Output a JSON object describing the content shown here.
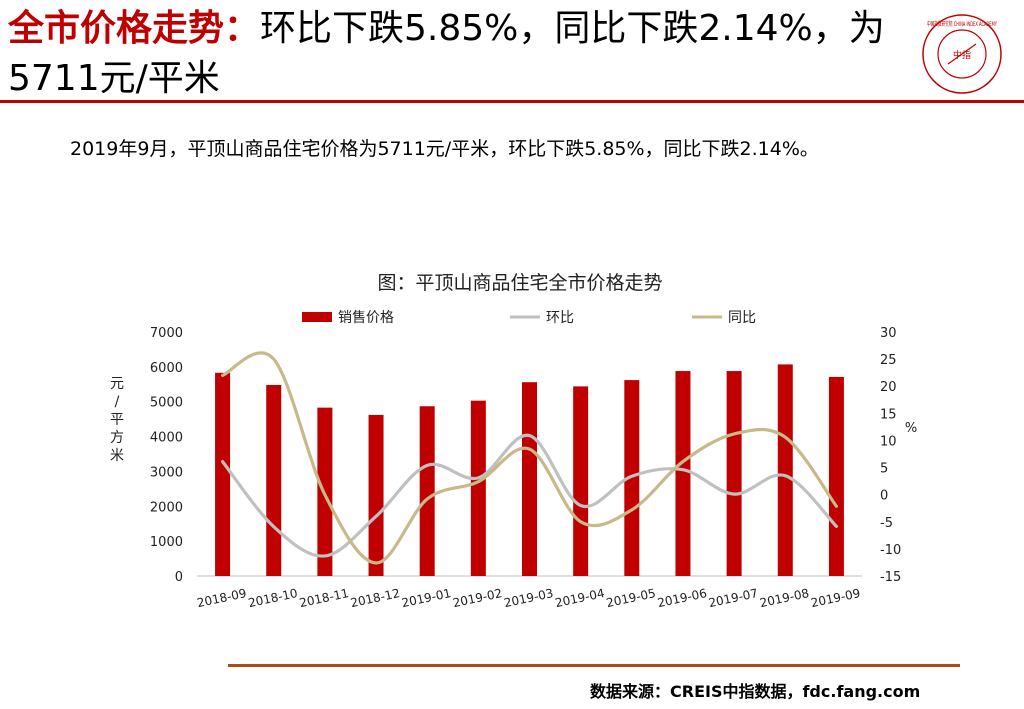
{
  "header": {
    "title_highlight": "全市价格走势：",
    "title_rest": "环比下跌5.85%，同比下跌2.14%，为5711元/平米"
  },
  "logo": {
    "text": "中国指数研究院 CHINA INDEX ACADEMY",
    "center_text": "中指",
    "color": "#c00000"
  },
  "summary": "2019年9月，平顶山商品住宅价格为5711元/平米，环比下跌5.85%，同比下跌2.14%。",
  "footer": {
    "source": "数据来源：CREIS中指数据，fdc.fang.com"
  },
  "colors": {
    "accent": "#c00000",
    "mom": "#c0c0c0",
    "yoy": "#c8b98a"
  },
  "chart_data": {
    "type": "bar",
    "title": "图：平顶山商品住宅全市价格走势",
    "ylabel": "元/平方米",
    "y2label": "%",
    "categories": [
      "2018-09",
      "2018-10",
      "2018-11",
      "2018-12",
      "2019-01",
      "2019-02",
      "2019-03",
      "2019-04",
      "2019-05",
      "2019-06",
      "2019-07",
      "2019-08",
      "2019-09"
    ],
    "series": [
      {
        "name": "销售价格",
        "type": "bar",
        "axis": "left",
        "values": [
          5830,
          5480,
          4830,
          4620,
          4870,
          5030,
          5560,
          5440,
          5620,
          5880,
          5880,
          6070,
          5711
        ]
      },
      {
        "name": "环比",
        "type": "line",
        "axis": "right",
        "values": [
          6.1,
          -5.9,
          -11.3,
          -4.0,
          5.4,
          3.1,
          10.9,
          -2.0,
          3.4,
          4.6,
          0.1,
          3.5,
          -5.85
        ]
      },
      {
        "name": "同比",
        "type": "line",
        "axis": "right",
        "values": [
          22.0,
          25.0,
          0.0,
          -12.6,
          -0.8,
          2.4,
          8.4,
          -5.0,
          -2.8,
          6.1,
          11.2,
          10.6,
          -2.14
        ]
      }
    ],
    "ylim": [
      0,
      7000
    ],
    "yticks": [
      0,
      1000,
      2000,
      3000,
      4000,
      5000,
      6000,
      7000
    ],
    "y2lim": [
      -15,
      30
    ],
    "y2ticks": [
      -15,
      -10,
      -5,
      0,
      5,
      10,
      15,
      20,
      25,
      30
    ],
    "legend_position": "top"
  }
}
